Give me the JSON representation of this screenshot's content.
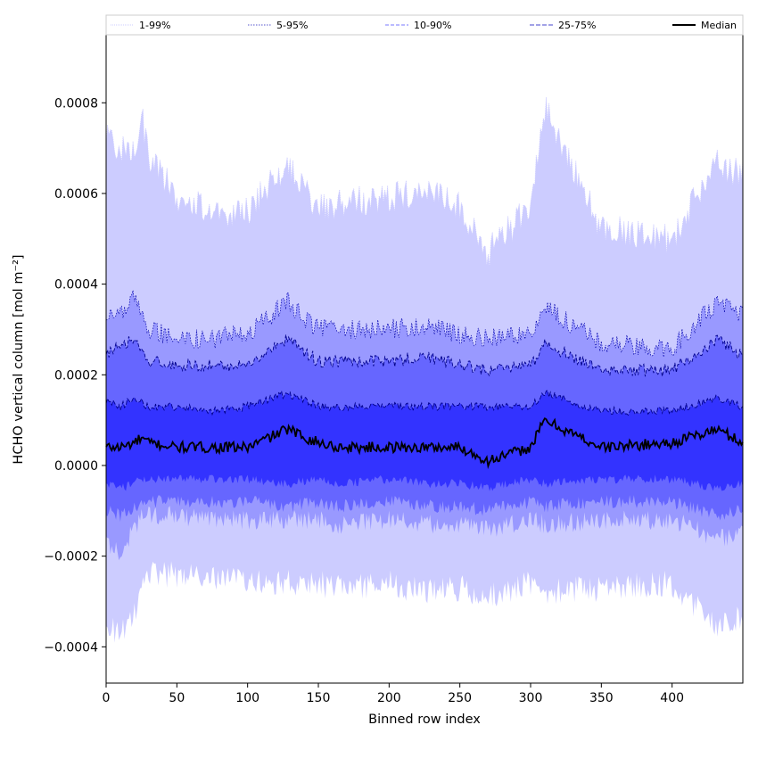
{
  "chart_data": {
    "type": "area",
    "title": "",
    "xlabel": "Binned row index",
    "ylabel": "HCHO vertical column [mol m⁻²]",
    "xlim": [
      0,
      450
    ],
    "ylim": [
      -0.00048,
      0.00095
    ],
    "xticks": [
      0,
      50,
      100,
      150,
      200,
      250,
      300,
      350,
      400
    ],
    "xtick_labels": [
      "0",
      "50",
      "100",
      "150",
      "200",
      "250",
      "300",
      "350",
      "400"
    ],
    "yticks": [
      -0.0004,
      -0.0002,
      0.0,
      0.0002,
      0.0004,
      0.0006,
      0.0008
    ],
    "ytick_labels": [
      "−0.0004",
      "−0.0002",
      "0.0000",
      "0.0002",
      "0.0004",
      "0.0006",
      "0.0008"
    ],
    "grid": false,
    "legend_position": "top, above plot, single row",
    "x": [
      0,
      10,
      20,
      25,
      30,
      50,
      75,
      100,
      128,
      150,
      165,
      200,
      227,
      250,
      270,
      300,
      310,
      350,
      400,
      432,
      450
    ],
    "series": [
      {
        "name": "1-99%",
        "color": "#ccccff",
        "lower": [
          -0.00035,
          -0.00037,
          -0.00033,
          -0.00024,
          -0.00024,
          -0.00024,
          -0.00025,
          -0.00025,
          -0.00026,
          -0.00026,
          -0.00027,
          -0.00026,
          -0.00028,
          -0.00027,
          -0.00029,
          -0.00026,
          -0.00028,
          -0.00027,
          -0.00026,
          -0.00036,
          -0.00033
        ],
        "upper": [
          0.00072,
          0.0007,
          0.0007,
          0.00077,
          0.00068,
          0.00059,
          0.00056,
          0.00056,
          0.00066,
          0.00057,
          0.00058,
          0.00059,
          0.00061,
          0.00057,
          0.00047,
          0.00057,
          0.00079,
          0.00052,
          0.0005,
          0.00067,
          0.00064
        ]
      },
      {
        "name": "5-95%",
        "color": "#9999ff",
        "lower": [
          -0.00017,
          -0.00019,
          -0.00014,
          -0.00011,
          -0.00011,
          -0.00011,
          -0.00012,
          -0.00012,
          -0.00012,
          -0.00012,
          -0.00013,
          -0.00012,
          -0.00013,
          -0.00013,
          -0.00014,
          -0.00012,
          -0.00013,
          -0.00012,
          -0.00012,
          -0.00016,
          -0.00015
        ],
        "upper": [
          0.00033,
          0.00033,
          0.00037,
          0.00033,
          0.0003,
          0.00028,
          0.00028,
          0.00029,
          0.00036,
          0.0003,
          0.0003,
          0.0003,
          0.00031,
          0.00029,
          0.00028,
          0.00029,
          0.00035,
          0.00027,
          0.00026,
          0.00036,
          0.00033
        ]
      },
      {
        "name": "10-90%",
        "color": "#6666ff",
        "lower": [
          -0.0001,
          -0.00011,
          -9e-05,
          -8e-05,
          -8e-05,
          -8e-05,
          -8e-05,
          -8e-05,
          -9e-05,
          -8e-05,
          -9e-05,
          -8e-05,
          -9e-05,
          -9e-05,
          -0.0001,
          -8e-05,
          -9e-05,
          -8e-05,
          -8e-05,
          -0.00011,
          -0.0001
        ],
        "upper": [
          0.00025,
          0.00026,
          0.00028,
          0.00025,
          0.00023,
          0.00022,
          0.00022,
          0.00022,
          0.00028,
          0.00023,
          0.00023,
          0.00023,
          0.00024,
          0.00022,
          0.00021,
          0.00022,
          0.00027,
          0.00021,
          0.00021,
          0.00028,
          0.00024
        ]
      },
      {
        "name": "25-75%",
        "color": "#3333ff",
        "lower": [
          -4e-05,
          -5e-05,
          -4e-05,
          -3e-05,
          -3e-05,
          -3e-05,
          -3e-05,
          -3e-05,
          -4e-05,
          -3e-05,
          -4e-05,
          -3e-05,
          -4e-05,
          -4e-05,
          -5e-05,
          -3e-05,
          -4e-05,
          -3e-05,
          -3e-05,
          -5e-05,
          -4e-05
        ],
        "upper": [
          0.00014,
          0.00013,
          0.00015,
          0.00014,
          0.00013,
          0.00013,
          0.00012,
          0.00013,
          0.00016,
          0.00013,
          0.00013,
          0.00013,
          0.00013,
          0.00013,
          0.00013,
          0.00013,
          0.00016,
          0.00012,
          0.00012,
          0.00015,
          0.00013
        ]
      },
      {
        "name": "Median",
        "color": "#000000",
        "values": [
          4e-05,
          4e-05,
          5e-05,
          6e-05,
          5e-05,
          4e-05,
          4e-05,
          4e-05,
          8e-05,
          5e-05,
          4e-05,
          4e-05,
          4e-05,
          4e-05,
          1e-05,
          4e-05,
          0.0001,
          4e-05,
          5e-05,
          8e-05,
          5e-05
        ]
      }
    ],
    "legend": [
      "1-99%",
      "5-95%",
      "10-90%",
      "25-75%",
      "Median"
    ]
  }
}
